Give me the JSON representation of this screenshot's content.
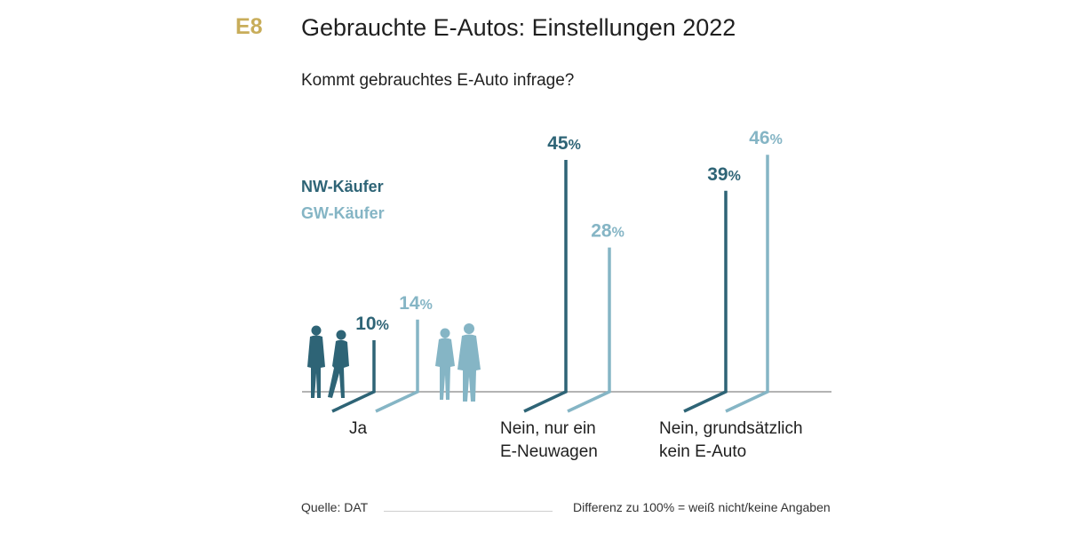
{
  "header": {
    "code": "E8",
    "title": "Gebrauchte E-Autos: Einstellungen 2022"
  },
  "colors": {
    "code": "#c8ad5a",
    "nw": "#2e6476",
    "gw": "#85b5c5",
    "axis": "#9a9a9a",
    "text": "#1f1f1f"
  },
  "icons": [
    "people-silhouette-dark-icon",
    "people-silhouette-light-icon"
  ],
  "chart_data": {
    "type": "bar",
    "title": "Kommt gebrauchtes E-Auto infrage?",
    "categories": [
      [
        "Ja"
      ],
      [
        "Nein, nur ein",
        "E-Neuwagen"
      ],
      [
        "Nein, grundsätzlich",
        "kein E-Auto"
      ]
    ],
    "series": [
      {
        "name": "NW-Käufer",
        "values": [
          10,
          45,
          39
        ]
      },
      {
        "name": "GW-Käufer",
        "values": [
          14,
          28,
          46
        ]
      }
    ],
    "unit": "%",
    "ylim": [
      0,
      50
    ],
    "legend": "top-left",
    "grid": false
  },
  "footer": {
    "source": "Quelle: DAT",
    "note": "Differenz zu 100% = weiß nicht/keine Angaben"
  }
}
